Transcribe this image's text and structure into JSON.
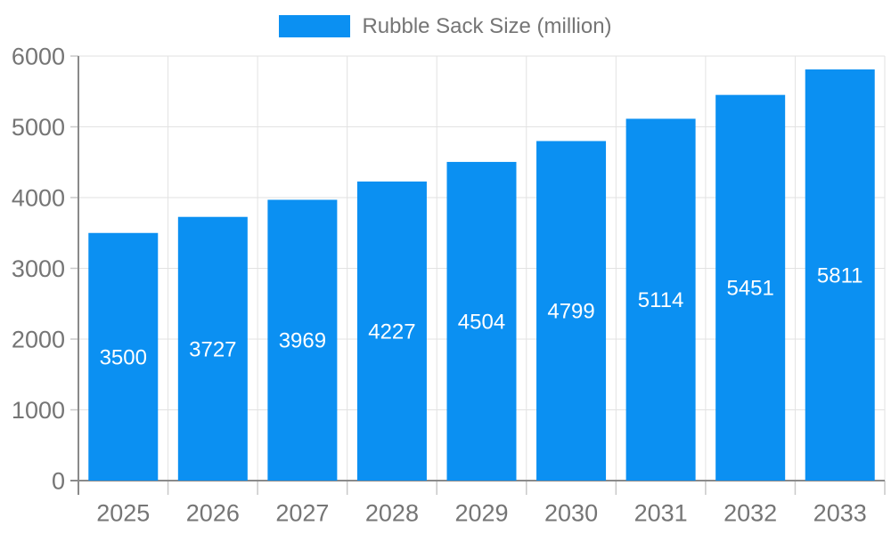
{
  "chart_data": {
    "type": "bar",
    "title": "",
    "legend": "Rubble Sack Size (million)",
    "legend_position": "top",
    "categories": [
      "2025",
      "2026",
      "2027",
      "2028",
      "2029",
      "2030",
      "2031",
      "2032",
      "2033"
    ],
    "values": [
      3500,
      3727,
      3969,
      4227,
      4504,
      4799,
      5114,
      5451,
      5811
    ],
    "xlabel": "",
    "ylabel": "",
    "ylim": [
      0,
      6000
    ],
    "ytick_step": 1000,
    "grid": true,
    "bar_labels_visible": true,
    "colors": {
      "bar": "#0b90f2",
      "bar_label": "#ffffff",
      "axis_text": "#757575",
      "grid_line": "#e2e2e2",
      "axis_line": "#8a8a8a",
      "tick_line": "#c9c9c9",
      "background": "#ffffff"
    }
  }
}
